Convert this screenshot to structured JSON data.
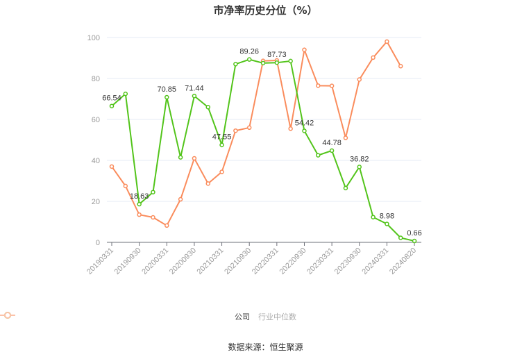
{
  "title": "市净率历史分位（%）",
  "source": "数据来源：恒生聚源",
  "legend": [
    {
      "label": "公司",
      "color": "#52c41a"
    },
    {
      "label": "行业中位数",
      "color": "#fa8c5c"
    }
  ],
  "chart_data": {
    "type": "line",
    "title": "市净率历史分位（%）",
    "xlabel": "",
    "ylabel": "",
    "ylim": [
      0,
      100
    ],
    "yticks": [
      0,
      20,
      40,
      60,
      80,
      100
    ],
    "grid": true,
    "legend_position": "bottom",
    "x": [
      "20190331",
      "20190630",
      "20190930",
      "20191231",
      "20200331",
      "20200630",
      "20200930",
      "20201231",
      "20210331",
      "20210630",
      "20210930",
      "20211231",
      "20220331",
      "20220630",
      "20220930",
      "20221231",
      "20230331",
      "20230630",
      "20230930",
      "20231231",
      "20240331",
      "20240630",
      "20240820"
    ],
    "xtick_labels": [
      "20190331",
      "20190930",
      "20200331",
      "20200930",
      "20210331",
      "20210930",
      "20220331",
      "20220930",
      "20230331",
      "20230930",
      "20240331",
      "20240820"
    ],
    "series": [
      {
        "name": "公司",
        "color": "#52c41a",
        "values": [
          66.54,
          72.5,
          18.63,
          24.5,
          70.85,
          41.5,
          71.44,
          66.0,
          47.55,
          87.0,
          89.26,
          87.5,
          87.73,
          88.5,
          54.42,
          42.5,
          44.78,
          26.5,
          36.82,
          12.3,
          8.98,
          2.2,
          0.66
        ],
        "labeled_points": {
          "0": "66.54",
          "2": "18.63",
          "4": "70.85",
          "6": "71.44",
          "8": "47.55",
          "10": "89.26",
          "12": "87.73",
          "14": "54.42",
          "16": "44.78",
          "18": "36.82",
          "20": "8.98",
          "22": "0.66"
        }
      },
      {
        "name": "行业中位数",
        "color": "#fa8c5c",
        "values": [
          37.0,
          27.5,
          13.5,
          12.2,
          8.2,
          21.0,
          41.0,
          28.7,
          34.4,
          54.5,
          56.0,
          88.6,
          88.8,
          55.5,
          94.0,
          76.5,
          76.4,
          51.0,
          79.5,
          90.2,
          98.0,
          86.0,
          null
        ]
      }
    ]
  }
}
